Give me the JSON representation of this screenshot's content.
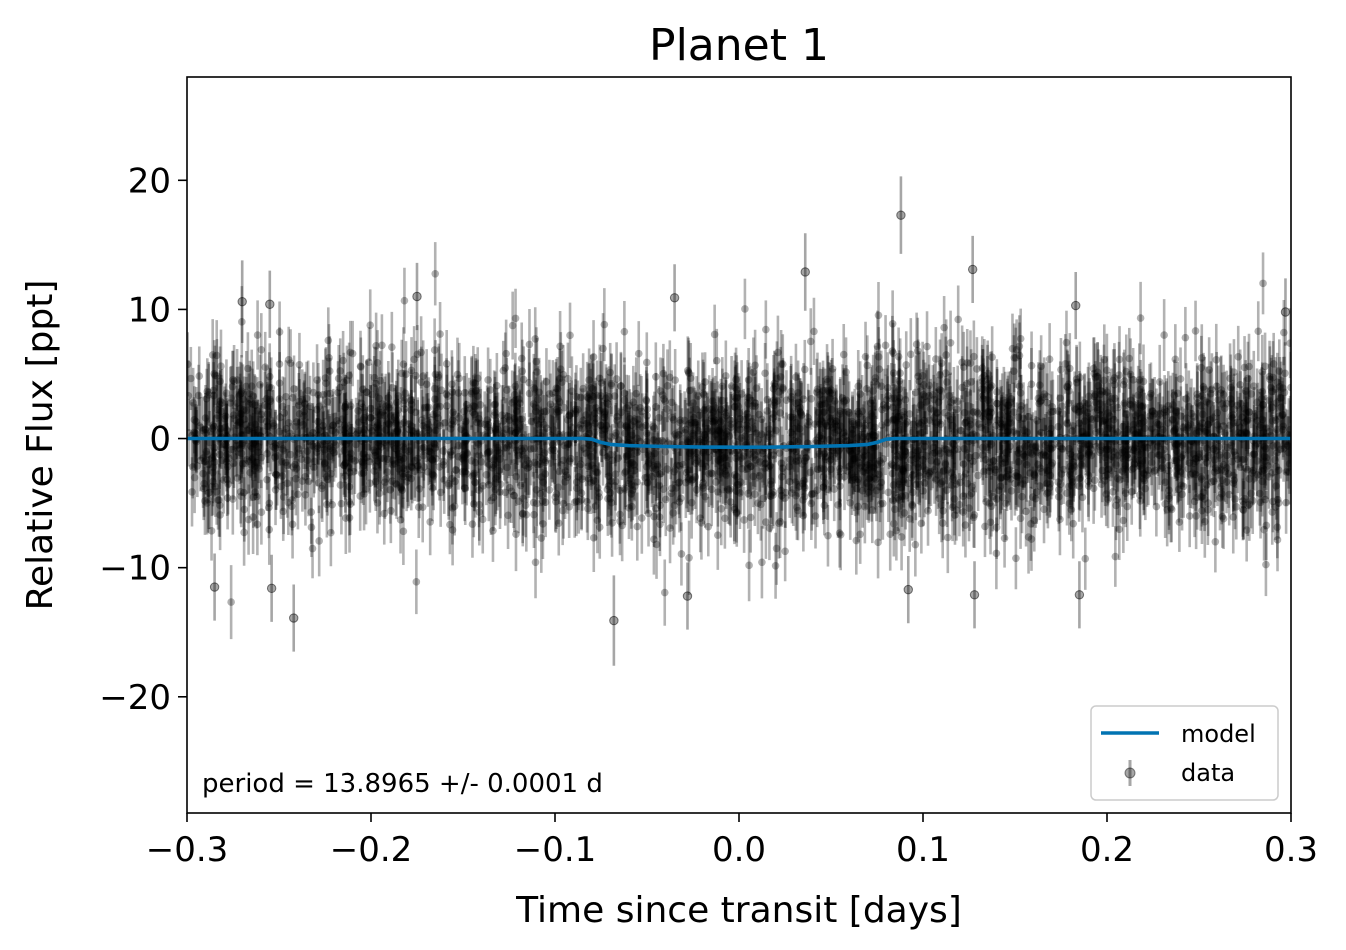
{
  "chart_data": {
    "type": "scatter",
    "title": "Planet 1",
    "xlabel": "Time since transit [days]",
    "ylabel": "Relative Flux [ppt]",
    "xlim": [
      -0.3,
      0.3
    ],
    "ylim": [
      -29,
      28
    ],
    "x_ticks": [
      -0.3,
      -0.2,
      -0.1,
      0.0,
      0.1,
      0.2,
      0.3
    ],
    "x_tick_labels": [
      "−0.3",
      "−0.2",
      "−0.1",
      "0.0",
      "0.1",
      "0.2",
      "0.3"
    ],
    "y_ticks": [
      -20,
      -10,
      0,
      10,
      20
    ],
    "y_tick_labels": [
      "−20",
      "−10",
      "0",
      "10",
      "20"
    ],
    "grid": false,
    "legend": {
      "position": "bottom-right",
      "entries": [
        {
          "label": "model",
          "kind": "line",
          "color": "#0173b2"
        },
        {
          "label": "data",
          "kind": "errorbar-point",
          "color": "#000000"
        }
      ]
    },
    "annotation": "period = 13.8965 +/- 0.0001 d",
    "series": [
      {
        "name": "model",
        "kind": "line",
        "color": "#0173b2",
        "x": [
          -0.3,
          -0.085,
          -0.08,
          -0.075,
          -0.07,
          -0.06,
          -0.04,
          -0.02,
          0.0,
          0.02,
          0.04,
          0.06,
          0.07,
          0.075,
          0.08,
          0.085,
          0.3
        ],
        "y": [
          0,
          0,
          -0.05,
          -0.3,
          -0.45,
          -0.55,
          -0.62,
          -0.66,
          -0.67,
          -0.66,
          -0.62,
          -0.55,
          -0.45,
          -0.3,
          -0.05,
          0,
          0
        ]
      },
      {
        "name": "data",
        "kind": "errorbar",
        "color": "#000000",
        "alpha": 0.3,
        "approx_count": 3000,
        "typical_error": 2.5,
        "scatter_sd": 3.2,
        "outliers": [
          {
            "x": 0.088,
            "y": 17.3,
            "err": 3.0
          },
          {
            "x": 0.036,
            "y": 12.9,
            "err": 3.0
          },
          {
            "x": 0.127,
            "y": 13.1,
            "err": 2.6
          },
          {
            "x": -0.068,
            "y": -14.1,
            "err": 3.5
          },
          {
            "x": -0.242,
            "y": -13.9,
            "err": 2.6
          },
          {
            "x": -0.27,
            "y": 10.6,
            "err": 3.2
          },
          {
            "x": -0.255,
            "y": 10.4,
            "err": 2.6
          },
          {
            "x": -0.175,
            "y": 11.0,
            "err": 2.6
          },
          {
            "x": -0.035,
            "y": 10.9,
            "err": 2.6
          },
          {
            "x": 0.183,
            "y": 10.3,
            "err": 2.6
          },
          {
            "x": 0.297,
            "y": 9.8,
            "err": 2.6
          },
          {
            "x": -0.285,
            "y": -11.5,
            "err": 2.6
          },
          {
            "x": 0.185,
            "y": -12.1,
            "err": 2.6
          },
          {
            "x": 0.128,
            "y": -12.1,
            "err": 2.6
          },
          {
            "x": -0.254,
            "y": -11.6,
            "err": 2.6
          },
          {
            "x": -0.028,
            "y": -12.2,
            "err": 2.6
          },
          {
            "x": 0.092,
            "y": -11.7,
            "err": 2.6
          }
        ]
      }
    ]
  }
}
